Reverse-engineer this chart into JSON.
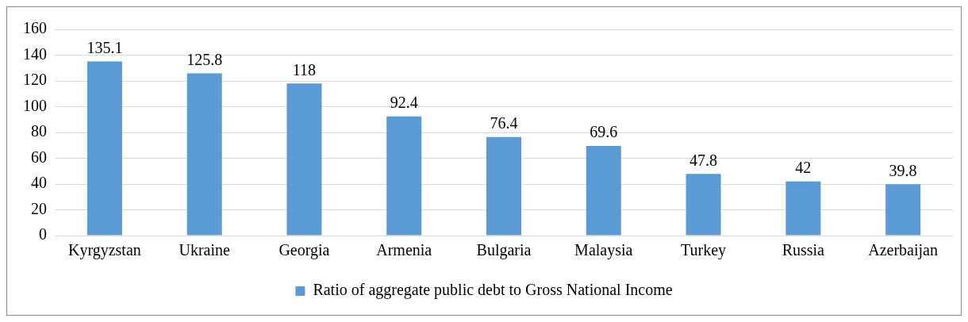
{
  "chart_data": {
    "type": "bar",
    "categories": [
      "Kyrgyzstan",
      "Ukraine",
      "Georgia",
      "Armenia",
      "Bulgaria",
      "Malaysia",
      "Turkey",
      "Russia",
      "Azerbaijan"
    ],
    "series": [
      {
        "name": "Ratio of aggregate public debt to Gross National Income",
        "color": "#5b9bd5",
        "values": [
          135.1,
          125.8,
          118,
          92.4,
          76.4,
          69.6,
          47.8,
          42,
          39.8
        ]
      }
    ],
    "ylim": [
      0,
      160
    ],
    "yticks": [
      0,
      20,
      40,
      60,
      80,
      100,
      120,
      140,
      160
    ],
    "grid": "y",
    "legend": "bottom",
    "data_labels": true
  }
}
